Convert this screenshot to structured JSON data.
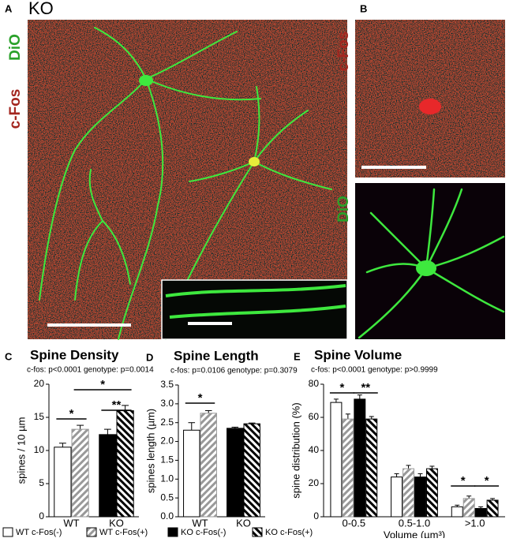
{
  "images": {
    "a_label": "A",
    "a_title": "KO",
    "a_stain_1": "DiO",
    "a_stain_2": "c-Fos",
    "b_label": "B",
    "b_stain_1": "c-Fos",
    "b_stain_2": "DiO"
  },
  "legend": [
    {
      "name": "WT c-Fos(-)",
      "color": "#ffffff",
      "hatch": false
    },
    {
      "name": "WT c-Fos(+)",
      "color": "#999999",
      "hatch": true
    },
    {
      "name": "KO c-Fos(-)",
      "color": "#000000",
      "hatch": false
    },
    {
      "name": "KO c-Fos(+)",
      "color": "#000000",
      "hatch": true
    }
  ],
  "chart_data": [
    {
      "type": "bar",
      "panel": "C",
      "title": "Spine Density",
      "subtitle": "c-fos: p<0.0001 genotype: p=0.0014",
      "y_label": "spines / 10 µm",
      "categories": [
        "WT",
        "KO"
      ],
      "series": [
        {
          "values": [
            10.5,
            null
          ],
          "errors": [
            0.6,
            null
          ]
        },
        {
          "values": [
            13.2,
            null
          ],
          "errors": [
            0.6,
            null
          ]
        },
        {
          "values": [
            null,
            12.4
          ],
          "errors": [
            null,
            0.8
          ]
        },
        {
          "values": [
            null,
            16.0
          ],
          "errors": [
            null,
            0.8
          ]
        }
      ],
      "ylim": [
        0,
        20
      ],
      "yticks": [
        0,
        5,
        10,
        15,
        20
      ],
      "annotations": [
        "*",
        "*",
        "**"
      ]
    },
    {
      "type": "bar",
      "panel": "D",
      "title": "Spine Length",
      "subtitle": "c-fos: p=0.0106 genotype: p=0.3079",
      "y_label": "spines length (µm)",
      "categories": [
        "WT",
        "KO"
      ],
      "series": [
        {
          "values": [
            2.3,
            null
          ],
          "errors": [
            0.2,
            null
          ]
        },
        {
          "values": [
            2.75,
            null
          ],
          "errors": [
            0.07,
            null
          ]
        },
        {
          "values": [
            null,
            2.35
          ],
          "errors": [
            null,
            0.03
          ]
        },
        {
          "values": [
            null,
            2.47
          ],
          "errors": [
            null,
            0.02
          ]
        }
      ],
      "ylim": [
        0,
        3.5
      ],
      "yticks": [
        {
          "value": 0,
          "label": "0.0"
        },
        0.5,
        {
          "value": 1,
          "label": "1.0"
        },
        1.5,
        {
          "value": 2,
          "label": "2.0"
        },
        2.5,
        {
          "value": 3,
          "label": "3.0"
        },
        3.5
      ],
      "annotations": [
        "*"
      ]
    },
    {
      "type": "bar",
      "panel": "E",
      "title": "Spine Volume",
      "subtitle": "c-fos: p<0.0001 genotype: p>0.9999",
      "y_label": "spine distribution (%)",
      "x_label": "Volume (µm³)",
      "categories": [
        "0-0.5",
        "0.5-1.0",
        ">1.0"
      ],
      "series": [
        {
          "values": [
            69,
            24,
            6
          ],
          "errors": [
            2,
            2,
            1
          ]
        },
        {
          "values": [
            59,
            29,
            11
          ],
          "errors": [
            3,
            2,
            1.5
          ]
        },
        {
          "values": [
            71,
            24,
            5
          ],
          "errors": [
            2.5,
            2,
            1
          ]
        },
        {
          "values": [
            59,
            29,
            10
          ],
          "errors": [
            1.5,
            1.5,
            1
          ]
        }
      ],
      "ylim": [
        0,
        80
      ],
      "yticks": [
        0,
        20,
        40,
        60,
        80
      ],
      "annotations": [
        "*",
        "**",
        "*",
        "*"
      ]
    }
  ]
}
